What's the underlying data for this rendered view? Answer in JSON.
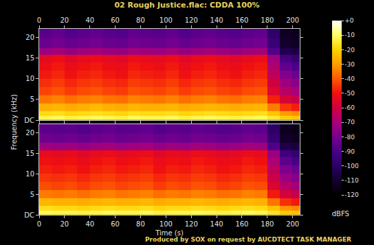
{
  "chart_data": {
    "type": "heatmap",
    "title": "02 Rough Justice.flac: CDDA 100%",
    "x_label": "Time (s)",
    "y_label": "Frequency (kHz)",
    "annotations": [
      "Produced by SOX on request by AUCDTECT TASK MANAGER"
    ],
    "grid": false,
    "xlim": [
      0,
      205.6
    ],
    "xticks": [
      0,
      20,
      40,
      60,
      80,
      100,
      120,
      140,
      160,
      180,
      200
    ],
    "ylim": [
      0,
      22.05
    ],
    "yticks": [
      {
        "value": 0,
        "label": "DC"
      },
      5,
      10,
      15,
      20
    ],
    "x": [
      5,
      15,
      25,
      35,
      45,
      55,
      65,
      75,
      85,
      95,
      105,
      115,
      125,
      135,
      145,
      155,
      165,
      175,
      185,
      195,
      203
    ],
    "y": [
      0.5,
      1.5,
      3,
      5,
      7,
      9,
      11,
      13,
      15,
      16.5,
      18.5,
      21
    ],
    "cells": [
      [
        [
          -12,
          -11,
          -13,
          -12,
          -11,
          -12,
          -13,
          -11,
          -12,
          -12,
          -11,
          -13,
          -12,
          -11,
          -12,
          -13,
          -12,
          -11,
          -15,
          -20,
          -22
        ],
        [
          -18,
          -17,
          -19,
          -18,
          -17,
          -18,
          -19,
          -17,
          -18,
          -18,
          -17,
          -19,
          -18,
          -17,
          -18,
          -19,
          -18,
          -17,
          -22,
          -30,
          -32
        ],
        [
          -26,
          -25,
          -27,
          -26,
          -24,
          -26,
          -27,
          -25,
          -26,
          -26,
          -25,
          -27,
          -26,
          -25,
          -26,
          -27,
          -26,
          -25,
          -35,
          -45,
          -48
        ],
        [
          -36,
          -34,
          -37,
          -35,
          -34,
          -36,
          -37,
          -34,
          -35,
          -36,
          -34,
          -37,
          -35,
          -34,
          -36,
          -37,
          -35,
          -34,
          -48,
          -58,
          -62
        ],
        [
          -43,
          -41,
          -44,
          -42,
          -41,
          -43,
          -44,
          -41,
          -42,
          -43,
          -41,
          -44,
          -42,
          -41,
          -43,
          -44,
          -42,
          -41,
          -56,
          -66,
          -70
        ],
        [
          -46,
          -44,
          -47,
          -45,
          -44,
          -46,
          -47,
          -44,
          -45,
          -46,
          -44,
          -47,
          -45,
          -44,
          -46,
          -47,
          -45,
          -44,
          -60,
          -72,
          -76
        ],
        [
          -49,
          -47,
          -50,
          -48,
          -47,
          -49,
          -50,
          -47,
          -48,
          -49,
          -47,
          -50,
          -48,
          -47,
          -49,
          -50,
          -48,
          -47,
          -64,
          -78,
          -82
        ],
        [
          -51,
          -49,
          -52,
          -50,
          -49,
          -51,
          -52,
          -49,
          -50,
          -51,
          -49,
          -52,
          -50,
          -49,
          -51,
          -52,
          -50,
          -49,
          -68,
          -85,
          -90
        ],
        [
          -54,
          -52,
          -55,
          -53,
          -52,
          -54,
          -55,
          -52,
          -53,
          -54,
          -52,
          -55,
          -53,
          -52,
          -54,
          -55,
          -53,
          -52,
          -72,
          -92,
          -96
        ],
        [
          -73,
          -71,
          -74,
          -72,
          -71,
          -73,
          -74,
          -71,
          -72,
          -73,
          -71,
          -74,
          -72,
          -71,
          -73,
          -74,
          -72,
          -71,
          -88,
          -104,
          -106
        ],
        [
          -83,
          -81,
          -84,
          -82,
          -81,
          -83,
          -84,
          -81,
          -82,
          -83,
          -81,
          -84,
          -82,
          -81,
          -83,
          -84,
          -82,
          -81,
          -95,
          -110,
          -112
        ],
        [
          -87,
          -85,
          -88,
          -86,
          -85,
          -87,
          -88,
          -85,
          -86,
          -87,
          -85,
          -88,
          -86,
          -85,
          -87,
          -88,
          -86,
          -85,
          -98,
          -112,
          -114
        ]
      ],
      [
        [
          -11,
          -12,
          -12,
          -13,
          -12,
          -11,
          -12,
          -12,
          -11,
          -13,
          -12,
          -12,
          -11,
          -12,
          -13,
          -12,
          -11,
          -12,
          -16,
          -21,
          -23
        ],
        [
          -17,
          -18,
          -18,
          -19,
          -18,
          -17,
          -18,
          -18,
          -17,
          -19,
          -18,
          -18,
          -17,
          -18,
          -19,
          -18,
          -17,
          -18,
          -23,
          -31,
          -33
        ],
        [
          -25,
          -26,
          -26,
          -27,
          -26,
          -25,
          -26,
          -26,
          -25,
          -27,
          -26,
          -26,
          -25,
          -26,
          -27,
          -26,
          -25,
          -26,
          -36,
          -46,
          -49
        ],
        [
          -35,
          -36,
          -35,
          -37,
          -35,
          -34,
          -36,
          -35,
          -34,
          -37,
          -35,
          -36,
          -34,
          -35,
          -37,
          -36,
          -34,
          -35,
          -49,
          -59,
          -63
        ],
        [
          -42,
          -43,
          -42,
          -44,
          -42,
          -41,
          -43,
          -42,
          -41,
          -44,
          -42,
          -43,
          -41,
          -42,
          -44,
          -43,
          -41,
          -42,
          -57,
          -67,
          -71
        ],
        [
          -45,
          -46,
          -45,
          -47,
          -45,
          -44,
          -46,
          -45,
          -44,
          -47,
          -45,
          -46,
          -44,
          -45,
          -47,
          -46,
          -44,
          -45,
          -61,
          -73,
          -77
        ],
        [
          -48,
          -49,
          -48,
          -50,
          -48,
          -47,
          -49,
          -48,
          -47,
          -50,
          -48,
          -49,
          -47,
          -48,
          -50,
          -49,
          -47,
          -48,
          -65,
          -79,
          -83
        ],
        [
          -50,
          -51,
          -50,
          -52,
          -50,
          -49,
          -51,
          -50,
          -49,
          -52,
          -50,
          -51,
          -49,
          -50,
          -52,
          -51,
          -49,
          -50,
          -69,
          -86,
          -91
        ],
        [
          -53,
          -54,
          -53,
          -55,
          -53,
          -52,
          -54,
          -53,
          -52,
          -55,
          -53,
          -54,
          -52,
          -53,
          -55,
          -54,
          -52,
          -53,
          -73,
          -93,
          -97
        ],
        [
          -72,
          -73,
          -72,
          -74,
          -72,
          -71,
          -73,
          -72,
          -71,
          -74,
          -72,
          -73,
          -71,
          -72,
          -74,
          -73,
          -71,
          -72,
          -89,
          -105,
          -107
        ],
        [
          -82,
          -83,
          -82,
          -84,
          -82,
          -81,
          -83,
          -82,
          -81,
          -84,
          -82,
          -83,
          -81,
          -82,
          -84,
          -83,
          -81,
          -82,
          -96,
          -111,
          -113
        ],
        [
          -86,
          -87,
          -86,
          -88,
          -86,
          -85,
          -87,
          -86,
          -85,
          -88,
          -86,
          -87,
          -85,
          -86,
          -88,
          -87,
          -85,
          -86,
          -99,
          -113,
          -115
        ]
      ]
    ],
    "colorbar": {
      "title": "dBFS",
      "range": [
        -120,
        0
      ],
      "ticks": [
        {
          "value": 0,
          "label": "+0"
        },
        -10,
        -20,
        -30,
        -40,
        -50,
        -60,
        -70,
        -80,
        -90,
        -100,
        -110,
        -120
      ]
    }
  }
}
